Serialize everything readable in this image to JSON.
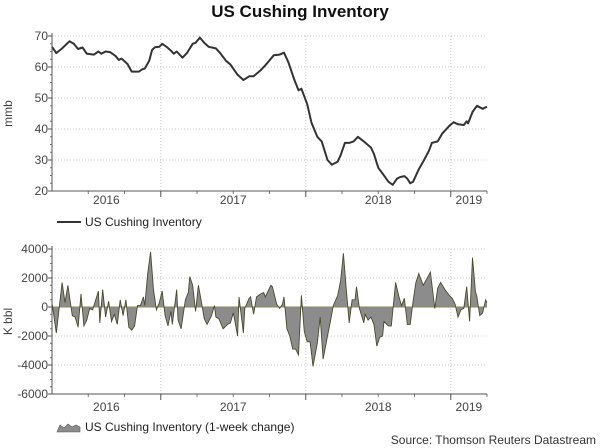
{
  "title": "US Cushing Inventory",
  "source": "Source: Thomson Reuters Datastream",
  "chart_data": [
    {
      "type": "line",
      "title": "US Cushing Inventory",
      "ylabel": "mmb",
      "xlabel": "",
      "xlim": [
        2016.25,
        2019.25
      ],
      "ylim": [
        20,
        70
      ],
      "yticks": [
        20,
        30,
        40,
        50,
        60,
        70
      ],
      "xticks": [
        {
          "label": "2016",
          "center": 2016.625
        },
        {
          "label": "2017",
          "center": 2017.5
        },
        {
          "label": "2018",
          "center": 2018.5
        },
        {
          "label": "2019",
          "center": 2019.125
        }
      ],
      "year_gridlines": [
        2017,
        2018,
        2019
      ],
      "grid": true,
      "legend": "bottom-left",
      "color": "#333333",
      "series": [
        {
          "name": "US Cushing Inventory",
          "x": [
            2016.25,
            2016.28,
            2016.32,
            2016.37,
            2016.4,
            2016.43,
            2016.46,
            2016.49,
            2016.54,
            2016.57,
            2016.59,
            2016.62,
            2016.65,
            2016.69,
            2016.71,
            2016.73,
            2016.77,
            2016.8,
            2016.85,
            2016.87,
            2016.89,
            2016.92,
            2016.94,
            2016.96,
            2016.99,
            2017.01,
            2017.04,
            2017.07,
            2017.09,
            2017.11,
            2017.15,
            2017.18,
            2017.22,
            2017.24,
            2017.27,
            2017.3,
            2017.33,
            2017.38,
            2017.41,
            2017.45,
            2017.48,
            2017.53,
            2017.57,
            2017.61,
            2017.64,
            2017.69,
            2017.73,
            2017.78,
            2017.82,
            2017.85,
            2017.88,
            2017.92,
            2017.95,
            2017.97,
            2018.01,
            2018.04,
            2018.08,
            2018.11,
            2018.15,
            2018.18,
            2018.22,
            2018.24,
            2018.27,
            2018.3,
            2018.33,
            2018.36,
            2018.4,
            2018.45,
            2018.47,
            2018.5,
            2018.54,
            2018.57,
            2018.6,
            2018.63,
            2018.65,
            2018.68,
            2018.7,
            2018.72,
            2018.74,
            2018.78,
            2018.81,
            2018.85,
            2018.87,
            2018.91,
            2018.94,
            2018.99,
            2019.02,
            2019.05,
            2019.09,
            2019.11,
            2019.12,
            2019.15,
            2019.18,
            2019.22,
            2019.25
          ],
          "y": [
            66.5,
            64.5,
            66,
            68.3,
            67.5,
            65.8,
            66.3,
            64.3,
            64,
            65,
            64.3,
            65,
            64.8,
            63.5,
            62.3,
            62.7,
            61,
            58.5,
            58.5,
            59.2,
            59.5,
            62,
            65.5,
            66.4,
            66.5,
            67.5,
            66.5,
            65.3,
            64.3,
            65,
            63,
            64.5,
            67.5,
            67.8,
            69.5,
            67.8,
            66.5,
            66,
            64.5,
            62,
            60.8,
            57.5,
            55.8,
            57,
            57,
            59,
            61,
            63.8,
            64,
            64.6,
            61.5,
            56,
            52.5,
            53,
            48,
            42,
            37.5,
            36,
            30,
            28.5,
            29.5,
            31.5,
            35.5,
            35.5,
            36,
            37.5,
            36,
            34,
            32,
            27.5,
            25,
            23,
            22,
            24,
            24.5,
            24.8,
            24,
            22.5,
            23,
            27,
            29.5,
            33,
            35.5,
            36,
            38.5,
            41,
            42.2,
            41.5,
            41.3,
            42.5,
            41.8,
            45.5,
            47.5,
            46.5,
            47.2
          ]
        }
      ]
    },
    {
      "type": "area",
      "title": "US Cushing Inventory (1-week change)",
      "ylabel": "K bbl",
      "xlabel": "",
      "xlim": [
        2016.25,
        2019.25
      ],
      "ylim": [
        -6000,
        4000
      ],
      "yticks": [
        -6000,
        -4000,
        -2000,
        0,
        2000,
        4000
      ],
      "xticks": [
        {
          "label": "2016",
          "center": 2016.625
        },
        {
          "label": "2017",
          "center": 2017.5
        },
        {
          "label": "2018",
          "center": 2018.5
        },
        {
          "label": "2019",
          "center": 2019.125
        }
      ],
      "year_gridlines": [
        2017,
        2018,
        2019
      ],
      "grid": true,
      "legend": "bottom-left",
      "color": "#8c8c8c",
      "series": [
        {
          "name": "US Cushing Inventory (1-week change)",
          "x": [
            2016.25,
            2016.28,
            2016.32,
            2016.34,
            2016.36,
            2016.39,
            2016.41,
            2016.43,
            2016.45,
            2016.47,
            2016.49,
            2016.51,
            2016.53,
            2016.57,
            2016.58,
            2016.6,
            2016.62,
            2016.64,
            2016.66,
            2016.68,
            2016.7,
            2016.72,
            2016.74,
            2016.76,
            2016.78,
            2016.8,
            2016.82,
            2016.84,
            2016.86,
            2016.88,
            2016.89,
            2016.91,
            2016.93,
            2016.95,
            2016.97,
            2016.99,
            2017.01,
            2017.03,
            2017.05,
            2017.07,
            2017.08,
            2017.11,
            2017.12,
            2017.14,
            2017.17,
            2017.19,
            2017.2,
            2017.22,
            2017.24,
            2017.26,
            2017.28,
            2017.3,
            2017.32,
            2017.35,
            2017.37,
            2017.38,
            2017.4,
            2017.43,
            2017.46,
            2017.48,
            2017.5,
            2017.53,
            2017.54,
            2017.57,
            2017.58,
            2017.61,
            2017.62,
            2017.64,
            2017.66,
            2017.69,
            2017.71,
            2017.72,
            2017.76,
            2017.77,
            2017.8,
            2017.82,
            2017.84,
            2017.85,
            2017.87,
            2017.89,
            2017.91,
            2017.93,
            2017.95,
            2017.97,
            2017.99,
            2018.01,
            2018.03,
            2018.05,
            2018.08,
            2018.1,
            2018.12,
            2018.15,
            2018.17,
            2018.19,
            2018.22,
            2018.24,
            2018.26,
            2018.28,
            2018.3,
            2018.32,
            2018.34,
            2018.35,
            2018.37,
            2018.4,
            2018.41,
            2018.43,
            2018.45,
            2018.47,
            2018.49,
            2018.51,
            2018.53,
            2018.54,
            2018.57,
            2018.59,
            2018.62,
            2018.64,
            2018.66,
            2018.68,
            2018.7,
            2018.72,
            2018.74,
            2018.76,
            2018.78,
            2018.81,
            2018.86,
            2018.89,
            2018.91,
            2018.93,
            2018.96,
            2018.99,
            2019.01,
            2019.03,
            2019.05,
            2019.07,
            2019.09,
            2019.11,
            2019.13,
            2019.15,
            2019.17,
            2019.18,
            2019.2,
            2019.22,
            2019.24,
            2019.25
          ],
          "y": [
            300,
            -1800,
            1700,
            300,
            1500,
            -600,
            -700,
            -1400,
            900,
            -1300,
            -900,
            -100,
            -200,
            1100,
            -1100,
            1200,
            -700,
            400,
            -1000,
            -500,
            -1200,
            500,
            -600,
            500,
            -1400,
            -1600,
            -1300,
            100,
            100,
            700,
            100,
            2300,
            3800,
            1200,
            -200,
            300,
            1100,
            -600,
            -1300,
            -300,
            -1200,
            1200,
            -900,
            -1500,
            500,
            1000,
            2100,
            1500,
            -300,
            1500,
            400,
            -800,
            -1200,
            -600,
            100,
            -700,
            -800,
            -1500,
            -1200,
            -1100,
            -400,
            -2000,
            700,
            -1800,
            -100,
            600,
            700,
            -500,
            700,
            900,
            1000,
            700,
            1500,
            1400,
            200,
            -100,
            200,
            700,
            -1500,
            -2000,
            -2900,
            -2900,
            -3300,
            800,
            -1700,
            -2400,
            -2400,
            -4100,
            -2500,
            -700,
            -3600,
            -2000,
            -1000,
            100,
            800,
            1800,
            3700,
            1200,
            -1100,
            500,
            500,
            1400,
            -100,
            -1100,
            -500,
            -900,
            -700,
            -1200,
            -2700,
            -2100,
            -2000,
            -1000,
            -1300,
            -1300,
            1700,
            800,
            100,
            600,
            -1200,
            -1200,
            400,
            1700,
            2300,
            1500,
            2400,
            -100,
            1300,
            1700,
            1200,
            800,
            600,
            200,
            -700,
            -200,
            -100,
            1400,
            -1000,
            3400,
            1100,
            700,
            -600,
            -400,
            500,
            300
          ]
        }
      ]
    }
  ]
}
